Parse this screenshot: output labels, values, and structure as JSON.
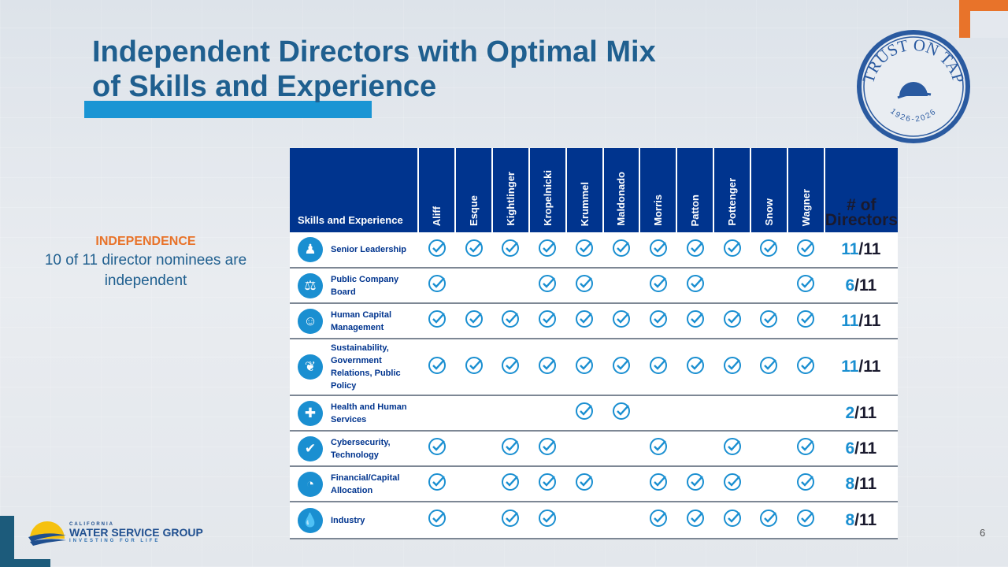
{
  "title_line1": "Independent Directors with Optimal Mix",
  "title_line2": "of Skills and Experience",
  "seal": {
    "text": "TRUST ON TAP",
    "years": "1926-2026"
  },
  "independence": {
    "heading": "INDEPENDENCE",
    "text": "10 of 11 director nominees are independent"
  },
  "table": {
    "skill_header": "Skills and Experience",
    "count_header": "# of Directors",
    "directors": [
      "Aliff",
      "Esque",
      "Kightlinger",
      "Kropelnicki",
      "Krummel",
      "Maldonado",
      "Morris",
      "Patton",
      "Pottenger",
      "Snow",
      "Wagner"
    ],
    "rows": [
      {
        "icon": "leadership-icon",
        "glyph": "♟",
        "label": "Senior Leadership",
        "checks": [
          1,
          1,
          1,
          1,
          1,
          1,
          1,
          1,
          1,
          1,
          1
        ],
        "count": "11",
        "total": "/11"
      },
      {
        "icon": "scales-icon",
        "glyph": "⚖",
        "label": "Public Company Board",
        "checks": [
          1,
          0,
          0,
          1,
          1,
          0,
          1,
          1,
          0,
          0,
          1
        ],
        "count": "6",
        "total": "/11"
      },
      {
        "icon": "people-icon",
        "glyph": "☺",
        "label": "Human Capital Management",
        "checks": [
          1,
          1,
          1,
          1,
          1,
          1,
          1,
          1,
          1,
          1,
          1
        ],
        "count": "11",
        "total": "/11"
      },
      {
        "icon": "leaf-icon",
        "glyph": "❦",
        "label": "Sustainability, Government Relations, Public Policy",
        "checks": [
          1,
          1,
          1,
          1,
          1,
          1,
          1,
          1,
          1,
          1,
          1
        ],
        "count": "11",
        "total": "/11"
      },
      {
        "icon": "health-cross-icon",
        "glyph": "✚",
        "label": "Health and Human Services",
        "checks": [
          0,
          0,
          0,
          0,
          1,
          1,
          0,
          0,
          0,
          0,
          0
        ],
        "count": "2",
        "total": "/11"
      },
      {
        "icon": "shield-icon",
        "glyph": "✔",
        "label": "Cybersecurity, Technology",
        "checks": [
          1,
          0,
          1,
          1,
          0,
          0,
          1,
          0,
          1,
          0,
          1
        ],
        "count": "6",
        "total": "/11"
      },
      {
        "icon": "pie-chart-icon",
        "glyph": "◔",
        "label": "Financial/Capital Allocation",
        "checks": [
          1,
          0,
          1,
          1,
          1,
          0,
          1,
          1,
          1,
          0,
          1
        ],
        "count": "8",
        "total": "/11"
      },
      {
        "icon": "water-drop-icon",
        "glyph": "💧",
        "label": "Industry",
        "checks": [
          1,
          0,
          1,
          1,
          0,
          0,
          1,
          1,
          1,
          1,
          1
        ],
        "count": "8",
        "total": "/11"
      }
    ]
  },
  "company": {
    "top": "CALIFORNIA",
    "name": "WATER SERVICE GROUP",
    "tagline": "INVESTING FOR LIFE"
  },
  "page_number": "6",
  "colors": {
    "header": "#00348e",
    "check": "#1a8fd1",
    "title": "#1f5f8f",
    "accent": "#e8732a"
  }
}
